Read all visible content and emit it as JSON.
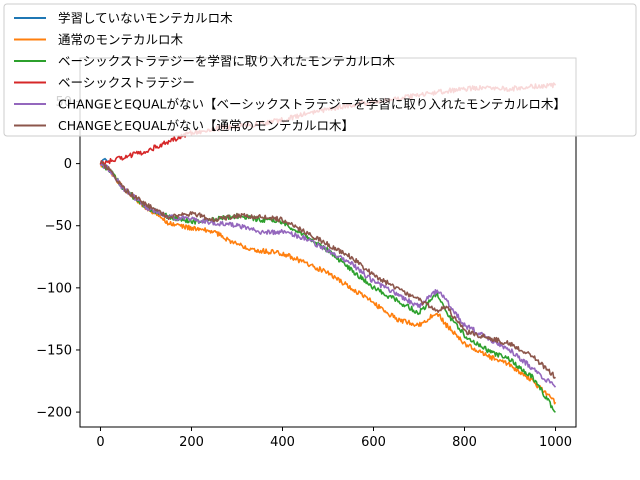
{
  "chart_data": {
    "type": "line",
    "title": "",
    "xlabel": "",
    "ylabel": "",
    "xlim": [
      -45,
      1045
    ],
    "ylim": [
      -212,
      85
    ],
    "x_ticks": [
      0,
      200,
      400,
      600,
      800,
      1000
    ],
    "y_ticks": [
      -200,
      -150,
      -100,
      -50,
      0,
      50
    ],
    "x_tick_labels": [
      "0",
      "200",
      "400",
      "600",
      "800",
      "1000"
    ],
    "y_tick_labels": [
      "−200",
      "−150",
      "−100",
      "−50",
      "0",
      "50"
    ],
    "grid": false,
    "legend_placement": "top-left",
    "series": [
      {
        "name": "学習していないモンテカルロ木",
        "color": "#1f77b4",
        "x": [
          0,
          5,
          10,
          15
        ],
        "y": [
          0,
          3,
          4,
          2
        ]
      },
      {
        "name": "通常のモンテカルロ木",
        "color": "#ff7f0e",
        "x": [
          0,
          20,
          50,
          100,
          150,
          200,
          250,
          300,
          350,
          400,
          450,
          500,
          550,
          600,
          650,
          700,
          740,
          760,
          800,
          850,
          900,
          950,
          1000
        ],
        "y": [
          0,
          -5,
          -20,
          -35,
          -48,
          -52,
          -55,
          -65,
          -70,
          -72,
          -80,
          -88,
          -100,
          -112,
          -125,
          -130,
          -120,
          -130,
          -145,
          -155,
          -162,
          -175,
          -192
        ]
      },
      {
        "name": "ベーシックストラテジーを学習に取り入れたモンテカルロ木",
        "color": "#2ca02c",
        "x": [
          0,
          20,
          50,
          100,
          150,
          200,
          250,
          300,
          350,
          400,
          450,
          500,
          550,
          600,
          650,
          700,
          740,
          760,
          800,
          850,
          900,
          950,
          1000
        ],
        "y": [
          0,
          -5,
          -20,
          -35,
          -43,
          -47,
          -45,
          -42,
          -45,
          -47,
          -58,
          -70,
          -85,
          -100,
          -110,
          -120,
          -105,
          -120,
          -138,
          -150,
          -158,
          -172,
          -200
        ]
      },
      {
        "name": "ベーシックストラテジー",
        "color": "#d62728",
        "x": [
          0,
          20,
          50,
          100,
          150,
          200,
          250,
          300,
          350,
          400,
          450,
          500,
          550,
          600,
          650,
          700,
          750,
          800,
          850,
          900,
          950,
          1000
        ],
        "y": [
          0,
          2,
          5,
          10,
          18,
          25,
          28,
          30,
          32,
          35,
          40,
          44,
          47,
          50,
          52,
          55,
          58,
          60,
          62,
          60,
          62,
          63
        ]
      },
      {
        "name": "CHANGEとEQUALがない【ベーシックストラテジーを学習に取り入れたモンテカルロ木】",
        "color": "#9467bd",
        "x": [
          0,
          20,
          50,
          100,
          150,
          200,
          250,
          300,
          350,
          400,
          450,
          500,
          550,
          600,
          650,
          700,
          740,
          760,
          800,
          850,
          900,
          950,
          1000
        ],
        "y": [
          0,
          -5,
          -20,
          -35,
          -43,
          -45,
          -48,
          -50,
          -55,
          -55,
          -60,
          -70,
          -80,
          -95,
          -105,
          -115,
          -102,
          -110,
          -130,
          -140,
          -150,
          -165,
          -180
        ]
      },
      {
        "name": "CHANGEとEQUALがない【通常のモンテカルロ木】",
        "color": "#8c564b",
        "x": [
          0,
          20,
          50,
          100,
          150,
          200,
          250,
          300,
          350,
          400,
          450,
          500,
          550,
          600,
          650,
          700,
          740,
          760,
          800,
          850,
          900,
          950,
          1000
        ],
        "y": [
          0,
          -5,
          -20,
          -33,
          -43,
          -40,
          -45,
          -42,
          -43,
          -45,
          -55,
          -65,
          -75,
          -90,
          -100,
          -110,
          -118,
          -115,
          -135,
          -140,
          -145,
          -155,
          -172
        ]
      }
    ]
  }
}
